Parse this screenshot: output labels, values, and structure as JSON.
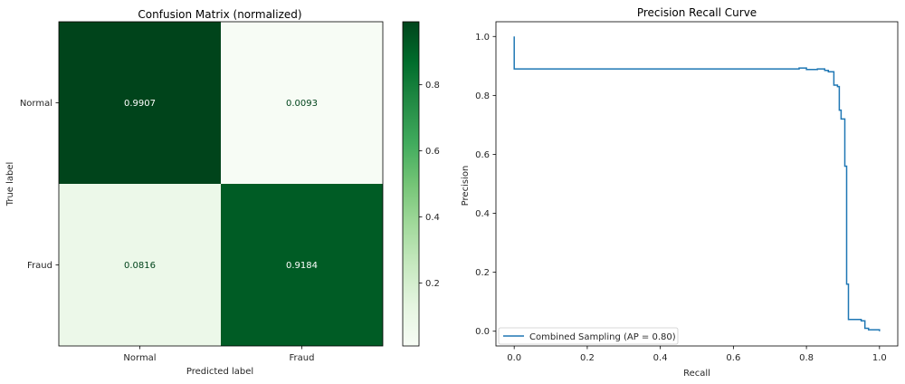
{
  "chart_data": [
    {
      "type": "heatmap",
      "title": "Confusion Matrix (normalized)",
      "xlabel": "Predicted label",
      "ylabel": "True label",
      "x_categories": [
        "Normal",
        "Fraud"
      ],
      "y_categories": [
        "Normal",
        "Fraud"
      ],
      "values": [
        [
          0.9907,
          0.0093
        ],
        [
          0.0816,
          0.9184
        ]
      ],
      "value_labels": [
        [
          "0.9907",
          "0.0093"
        ],
        [
          "0.0816",
          "0.9184"
        ]
      ],
      "colormap": "Greens",
      "colorbar": {
        "range": [
          0.0093,
          0.9907
        ],
        "ticks": [
          "0.2",
          "0.4",
          "0.6",
          "0.8"
        ]
      }
    },
    {
      "type": "line",
      "title": "Precision Recall Curve",
      "xlabel": "Recall",
      "ylabel": "Precision",
      "xlim": [
        -0.05,
        1.05
      ],
      "ylim": [
        -0.05,
        1.05
      ],
      "x_ticks": [
        "0.0",
        "0.2",
        "0.4",
        "0.6",
        "0.8",
        "1.0"
      ],
      "y_ticks": [
        "0.0",
        "0.2",
        "0.4",
        "0.6",
        "0.8",
        "1.0"
      ],
      "grid": false,
      "legend_position": "lower-left",
      "series": [
        {
          "name": "Combined Sampling (AP = 0.80)",
          "color": "#1f77b4",
          "x": [
            1.0,
            0.97,
            0.96,
            0.95,
            0.92,
            0.915,
            0.91,
            0.905,
            0.9,
            0.895,
            0.89,
            0.885,
            0.875,
            0.86,
            0.85,
            0.83,
            0.8,
            0.78,
            0.76,
            0.7,
            0.5,
            0.2,
            0.0,
            0.0
          ],
          "y": [
            0.0,
            0.005,
            0.01,
            0.035,
            0.04,
            0.04,
            0.16,
            0.56,
            0.72,
            0.72,
            0.75,
            0.83,
            0.835,
            0.88,
            0.885,
            0.89,
            0.888,
            0.893,
            0.89,
            0.89,
            0.89,
            0.89,
            0.89,
            1.0
          ]
        }
      ]
    }
  ]
}
